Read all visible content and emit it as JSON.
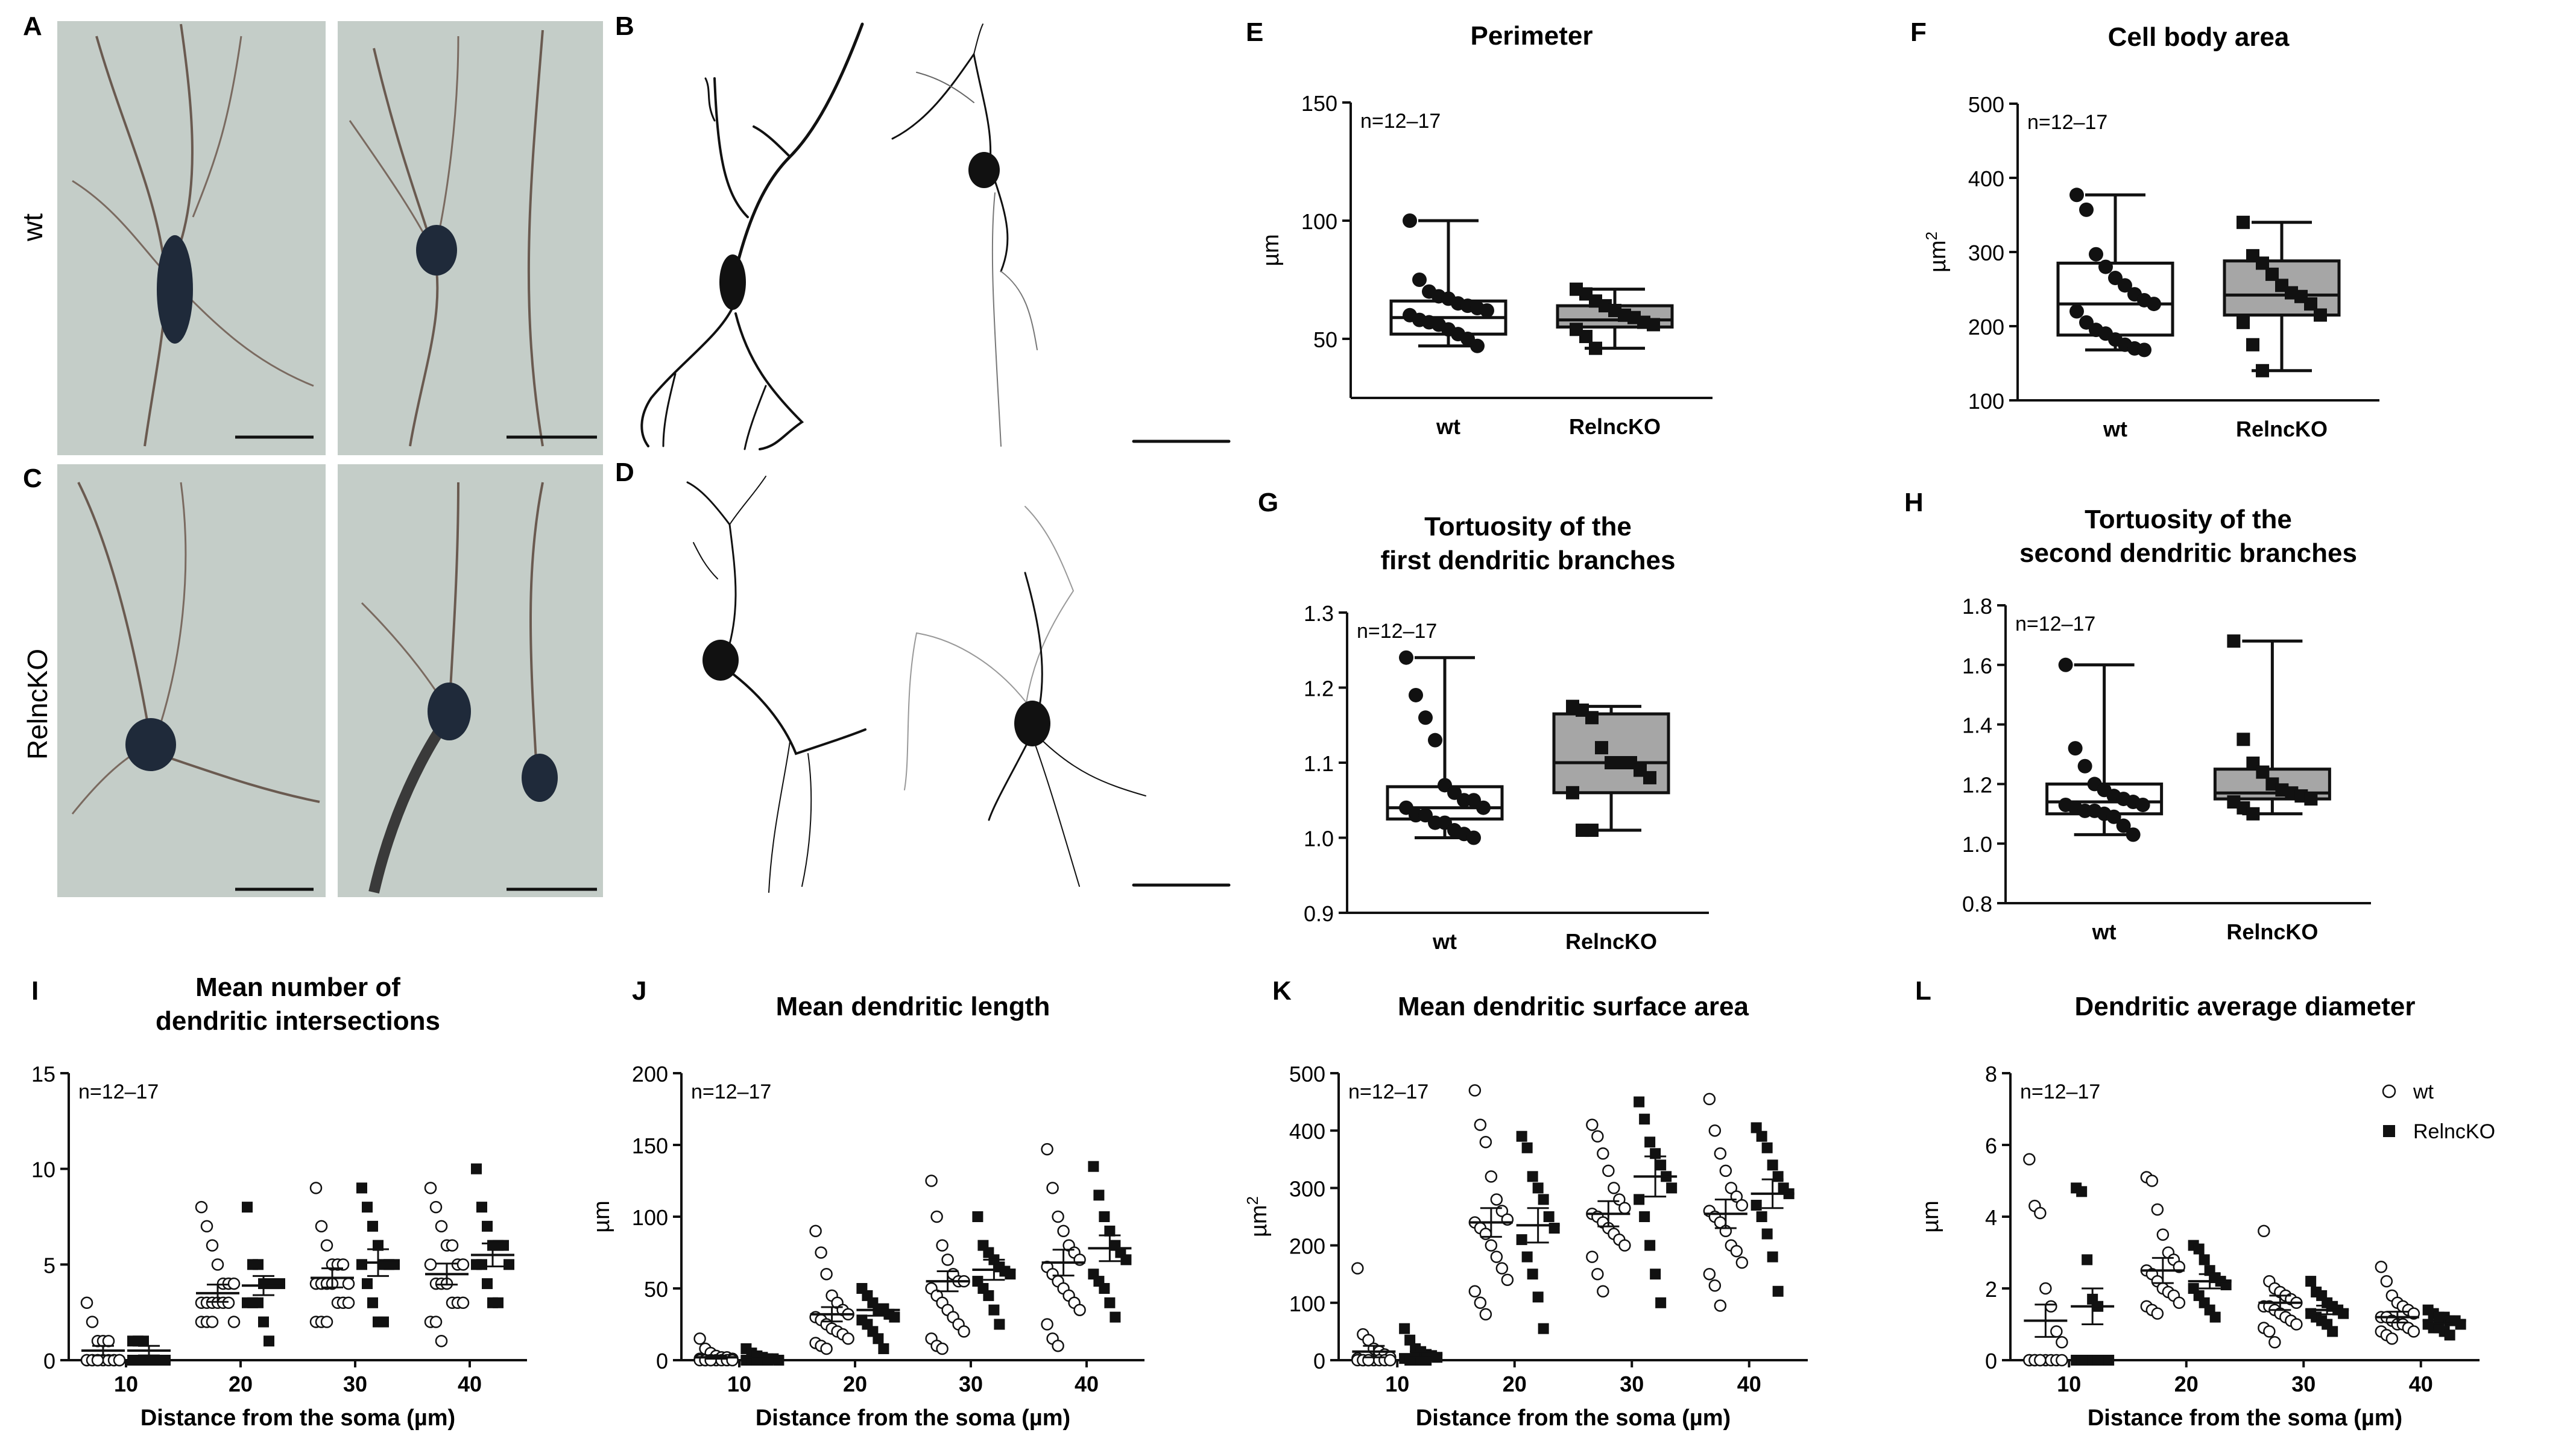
{
  "panel_letters": [
    "A",
    "B",
    "C",
    "D",
    "E",
    "F",
    "G",
    "H",
    "I",
    "J",
    "K",
    "L"
  ],
  "row_labels": {
    "wt": "wt",
    "ko": "RelncKO"
  },
  "colors": {
    "fill_ko": "#a6a6a6",
    "ink": "#111111",
    "photo_bg": "#c4cdc8",
    "neuron": "#1f2a3a"
  },
  "chart_data": [
    {
      "id": "E",
      "type": "box",
      "title": "Perimeter",
      "title2": "",
      "ylabel": "µm",
      "ylabel_sup": "",
      "n_label": "n=12–17",
      "ylim": [
        25,
        150
      ],
      "yticks": [
        50,
        100,
        150
      ],
      "categories": [
        "wt",
        "RelncKO"
      ],
      "boxes": [
        {
          "name": "wt",
          "min": 47,
          "q1": 52,
          "median": 59,
          "q3": 66,
          "max": 100,
          "marker": "circle",
          "fill": "#ffffff",
          "points": [
            100,
            75,
            70,
            68,
            67,
            65,
            64,
            63,
            62,
            60,
            58,
            57,
            56,
            54,
            52,
            50,
            47
          ]
        },
        {
          "name": "RelncKO",
          "min": 46,
          "q1": 55,
          "median": 58,
          "q3": 64,
          "max": 71,
          "marker": "square",
          "fill": "#a6a6a6",
          "points": [
            71,
            69,
            66,
            64,
            62,
            60,
            59,
            57,
            56,
            54,
            51,
            46
          ]
        }
      ]
    },
    {
      "id": "F",
      "type": "box",
      "title": "Cell body area",
      "title2": "",
      "ylabel": "µm",
      "ylabel_sup": "2",
      "n_label": "n=12–17",
      "ylim": [
        100,
        500
      ],
      "yticks": [
        100,
        200,
        300,
        400,
        500
      ],
      "categories": [
        "wt",
        "RelncKO"
      ],
      "boxes": [
        {
          "name": "wt",
          "min": 168,
          "q1": 188,
          "median": 230,
          "q3": 285,
          "max": 377,
          "marker": "circle",
          "fill": "#ffffff",
          "points": [
            377,
            357,
            297,
            280,
            265,
            255,
            243,
            235,
            230,
            220,
            205,
            195,
            190,
            182,
            175,
            170,
            168
          ]
        },
        {
          "name": "RelncKO",
          "min": 140,
          "q1": 215,
          "median": 242,
          "q3": 288,
          "max": 340,
          "marker": "square",
          "fill": "#a6a6a6",
          "points": [
            340,
            295,
            285,
            270,
            255,
            245,
            240,
            230,
            215,
            205,
            175,
            140
          ]
        }
      ]
    },
    {
      "id": "G",
      "type": "box",
      "title": "Tortuosity of the",
      "title2": "first dendritic branches",
      "ylabel": "",
      "ylabel_sup": "",
      "n_label": "n=12–17",
      "ylim": [
        0.9,
        1.3
      ],
      "yticks": [
        0.9,
        1.0,
        1.1,
        1.2,
        1.3
      ],
      "categories": [
        "wt",
        "RelncKO"
      ],
      "boxes": [
        {
          "name": "wt",
          "min": 1.0,
          "q1": 1.025,
          "median": 1.04,
          "q3": 1.068,
          "max": 1.24,
          "marker": "circle",
          "fill": "#ffffff",
          "points": [
            1.24,
            1.19,
            1.16,
            1.13,
            1.07,
            1.06,
            1.05,
            1.05,
            1.04,
            1.04,
            1.03,
            1.03,
            1.02,
            1.02,
            1.01,
            1.005,
            1.0
          ]
        },
        {
          "name": "RelncKO",
          "min": 1.01,
          "q1": 1.06,
          "median": 1.1,
          "q3": 1.165,
          "max": 1.175,
          "marker": "square",
          "fill": "#a6a6a6",
          "points": [
            1.175,
            1.17,
            1.16,
            1.12,
            1.1,
            1.1,
            1.1,
            1.09,
            1.08,
            1.06,
            1.01,
            1.01
          ]
        }
      ]
    },
    {
      "id": "H",
      "type": "box",
      "title": "Tortuosity of the",
      "title2": "second dendritic branches",
      "ylabel": "",
      "ylabel_sup": "",
      "n_label": "n=12–17",
      "ylim": [
        0.8,
        1.8
      ],
      "yticks": [
        0.8,
        1.0,
        1.2,
        1.4,
        1.6,
        1.8
      ],
      "categories": [
        "wt",
        "RelncKO"
      ],
      "boxes": [
        {
          "name": "wt",
          "min": 1.03,
          "q1": 1.1,
          "median": 1.14,
          "q3": 1.2,
          "max": 1.6,
          "marker": "circle",
          "fill": "#ffffff",
          "points": [
            1.6,
            1.32,
            1.26,
            1.2,
            1.18,
            1.16,
            1.15,
            1.14,
            1.13,
            1.13,
            1.12,
            1.11,
            1.11,
            1.1,
            1.09,
            1.06,
            1.03
          ]
        },
        {
          "name": "RelncKO",
          "min": 1.1,
          "q1": 1.15,
          "median": 1.17,
          "q3": 1.25,
          "max": 1.68,
          "marker": "square",
          "fill": "#a6a6a6",
          "points": [
            1.68,
            1.35,
            1.27,
            1.24,
            1.2,
            1.18,
            1.17,
            1.16,
            1.15,
            1.14,
            1.12,
            1.1
          ]
        }
      ]
    },
    {
      "id": "I",
      "type": "scatter",
      "title": "Mean number of",
      "title2": "dendritic intersections",
      "xlabel": "Distance from the soma (µm)",
      "ylabel": "",
      "ylabel_sup": "",
      "n_label": "n=12–17",
      "ylim": [
        0,
        15
      ],
      "yticks": [
        0,
        5,
        10,
        15
      ],
      "categories": [
        "10",
        "20",
        "30",
        "40"
      ],
      "series": [
        {
          "name": "wt",
          "marker": "circle-open",
          "values": [
            [
              3,
              2,
              1,
              1,
              1,
              0,
              0,
              0,
              0,
              0,
              0,
              0,
              0,
              0,
              0,
              0,
              0
            ],
            [
              8,
              7,
              6,
              5,
              4,
              4,
              4,
              3,
              3,
              3,
              3,
              3,
              3,
              2,
              2,
              2,
              2
            ],
            [
              9,
              7,
              6,
              5,
              5,
              5,
              4,
              4,
              4,
              4,
              4,
              3,
              3,
              3,
              2,
              2,
              2
            ],
            [
              9,
              8,
              7,
              6,
              6,
              5,
              5,
              5,
              4,
              4,
              4,
              3,
              3,
              3,
              2,
              2,
              1
            ]
          ],
          "mean": [
            0.5,
            3.5,
            4.3,
            4.5
          ],
          "sem": [
            0.25,
            0.45,
            0.5,
            0.55
          ]
        },
        {
          "name": "RelncKO",
          "marker": "square",
          "values": [
            [
              1,
              1,
              1,
              0,
              0,
              0,
              0,
              0,
              0,
              0,
              0,
              0
            ],
            [
              8,
              5,
              5,
              4,
              4,
              4,
              4,
              3,
              3,
              3,
              2,
              1
            ],
            [
              9,
              8,
              7,
              6,
              5,
              5,
              5,
              5,
              4,
              3,
              2,
              2
            ],
            [
              10,
              8,
              7,
              6,
              6,
              6,
              5,
              5,
              5,
              4,
              3,
              3
            ]
          ],
          "mean": [
            0.5,
            3.9,
            5.1,
            5.5
          ],
          "sem": [
            0.25,
            0.5,
            0.7,
            0.6
          ]
        }
      ]
    },
    {
      "id": "J",
      "type": "scatter",
      "title": "Mean dendritic length",
      "title2": "",
      "xlabel": "Distance from the soma (µm)",
      "ylabel": "µm",
      "ylabel_sup": "",
      "n_label": "n=12–17",
      "ylim": [
        0,
        200
      ],
      "yticks": [
        0,
        50,
        100,
        150,
        200
      ],
      "categories": [
        "10",
        "20",
        "30",
        "40"
      ],
      "series": [
        {
          "name": "wt",
          "marker": "circle-open",
          "values": [
            [
              15,
              8,
              5,
              3,
              2,
              2,
              1,
              1,
              0,
              0,
              0,
              0,
              0,
              0,
              0,
              0,
              0
            ],
            [
              90,
              75,
              60,
              45,
              40,
              35,
              32,
              30,
              28,
              25,
              22,
              20,
              18,
              15,
              12,
              10,
              8
            ],
            [
              125,
              100,
              80,
              70,
              60,
              55,
              55,
              50,
              45,
              40,
              35,
              30,
              25,
              20,
              15,
              10,
              8
            ],
            [
              147,
              120,
              100,
              90,
              80,
              75,
              70,
              65,
              60,
              55,
              50,
              45,
              40,
              35,
              25,
              15,
              10
            ]
          ],
          "mean": [
            2,
            32,
            55,
            68
          ],
          "sem": [
            1,
            5,
            7,
            9
          ]
        },
        {
          "name": "RelncKO",
          "marker": "square",
          "values": [
            [
              8,
              5,
              3,
              2,
              1,
              1,
              0,
              0,
              0,
              0,
              0,
              0
            ],
            [
              50,
              45,
              40,
              35,
              35,
              32,
              30,
              28,
              25,
              20,
              15,
              8
            ],
            [
              100,
              80,
              75,
              70,
              65,
              62,
              60,
              55,
              50,
              45,
              35,
              25
            ],
            [
              135,
              115,
              100,
              90,
              80,
              75,
              70,
              60,
              55,
              50,
              40,
              30
            ]
          ],
          "mean": [
            2,
            35,
            63,
            78
          ],
          "sem": [
            1,
            4,
            7,
            9
          ]
        }
      ]
    },
    {
      "id": "K",
      "type": "scatter",
      "title": "Mean dendritic surface area",
      "title2": "",
      "xlabel": "Distance from the soma (µm)",
      "ylabel": "µm",
      "ylabel_sup": "2",
      "n_label": "n=12–17",
      "ylim": [
        0,
        500
      ],
      "yticks": [
        0,
        100,
        200,
        300,
        400,
        500
      ],
      "categories": [
        "10",
        "20",
        "30",
        "40"
      ],
      "series": [
        {
          "name": "wt",
          "marker": "circle-open",
          "values": [
            [
              160,
              45,
              35,
              20,
              15,
              10,
              5,
              3,
              0,
              0,
              0,
              0,
              0,
              0,
              0,
              0,
              0
            ],
            [
              470,
              410,
              380,
              320,
              280,
              260,
              245,
              240,
              230,
              220,
              200,
              180,
              160,
              140,
              120,
              100,
              80
            ],
            [
              410,
              390,
              360,
              330,
              300,
              280,
              265,
              255,
              250,
              240,
              230,
              220,
              210,
              200,
              180,
              150,
              120
            ],
            [
              455,
              400,
              360,
              330,
              300,
              285,
              270,
              260,
              250,
              240,
              225,
              200,
              190,
              170,
              150,
              130,
              95
            ]
          ],
          "mean": [
            15,
            240,
            255,
            255
          ],
          "sem": [
            10,
            25,
            22,
            25
          ]
        },
        {
          "name": "RelncKO",
          "marker": "square",
          "values": [
            [
              55,
              35,
              20,
              15,
              10,
              8,
              5,
              3,
              0,
              0,
              0,
              0
            ],
            [
              390,
              370,
              320,
              300,
              280,
              250,
              230,
              210,
              180,
              150,
              110,
              55
            ],
            [
              450,
              420,
              380,
              360,
              340,
              320,
              300,
              280,
              250,
              200,
              150,
              100
            ],
            [
              405,
              390,
              370,
              340,
              320,
              300,
              290,
              270,
              250,
              220,
              180,
              120
            ]
          ],
          "mean": [
            10,
            235,
            320,
            290
          ],
          "sem": [
            5,
            30,
            35,
            25
          ]
        }
      ]
    },
    {
      "id": "L",
      "type": "scatter",
      "title": "Dendritic average diameter",
      "title2": "",
      "xlabel": "Distance from the soma (µm)",
      "ylabel": "µm",
      "ylabel_sup": "",
      "n_label": "n=12–17",
      "ylim": [
        0,
        8
      ],
      "yticks": [
        0,
        2,
        4,
        6,
        8
      ],
      "categories": [
        "10",
        "20",
        "30",
        "40"
      ],
      "legend": {
        "wt": "wt",
        "ko": "RelncKO"
      },
      "series": [
        {
          "name": "wt",
          "marker": "circle-open",
          "values": [
            [
              5.6,
              4.3,
              4.1,
              2.0,
              1.5,
              0.8,
              0.5,
              0,
              0,
              0,
              0,
              0,
              0,
              0,
              0,
              0,
              0
            ],
            [
              5.1,
              5.0,
              4.2,
              3.5,
              3.0,
              2.8,
              2.6,
              2.5,
              2.4,
              2.2,
              2.0,
              1.9,
              1.8,
              1.6,
              1.5,
              1.4,
              1.3
            ],
            [
              3.6,
              2.2,
              2.0,
              1.9,
              1.8,
              1.7,
              1.6,
              1.5,
              1.5,
              1.4,
              1.3,
              1.2,
              1.1,
              1.0,
              0.9,
              0.8,
              0.5
            ],
            [
              2.6,
              2.2,
              1.8,
              1.6,
              1.5,
              1.4,
              1.3,
              1.2,
              1.2,
              1.1,
              1.0,
              1.0,
              0.9,
              0.8,
              0.8,
              0.7,
              0.6
            ]
          ],
          "mean": [
            1.1,
            2.5,
            1.6,
            1.2
          ],
          "sem": [
            0.45,
            0.35,
            0.2,
            0.15
          ]
        },
        {
          "name": "RelncKO",
          "marker": "square",
          "values": [
            [
              4.8,
              4.7,
              2.8,
              1.7,
              1.5,
              0,
              0,
              0,
              0,
              0,
              0,
              0
            ],
            [
              3.2,
              3.1,
              2.8,
              2.5,
              2.3,
              2.2,
              2.1,
              2.0,
              1.8,
              1.6,
              1.4,
              1.2
            ],
            [
              2.2,
              1.9,
              1.8,
              1.6,
              1.5,
              1.4,
              1.3,
              1.3,
              1.2,
              1.1,
              1.0,
              0.8
            ],
            [
              1.4,
              1.3,
              1.2,
              1.2,
              1.1,
              1.1,
              1.0,
              1.0,
              0.9,
              0.9,
              0.8,
              0.7
            ]
          ],
          "mean": [
            1.5,
            2.2,
            1.4,
            1.1
          ],
          "sem": [
            0.5,
            0.2,
            0.12,
            0.07
          ]
        }
      ]
    }
  ]
}
